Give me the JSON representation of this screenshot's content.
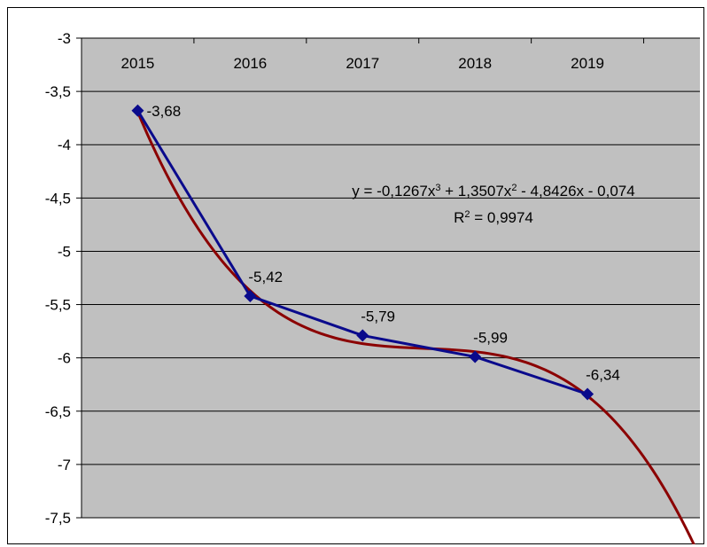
{
  "chart_data": {
    "type": "line",
    "categories": [
      "2015",
      "2016",
      "2017",
      "2018",
      "2019"
    ],
    "series": [
      {
        "values": [
          -3.68,
          -5.42,
          -5.79,
          -5.99,
          -6.34
        ],
        "color": "#0a0a8c",
        "marker": "diamond",
        "data_labels": [
          "-3,68",
          "-5,42",
          "-5,79",
          "-5,99",
          "-6,34"
        ]
      }
    ],
    "trendline": {
      "type": "polynomial-3",
      "coefficients": [
        -0.1267,
        1.3507,
        -4.8426,
        -0.074
      ],
      "color": "#8b0000",
      "equation_parts": [
        "y = -0,1267x",
        "3",
        " + 1,3507x",
        "2",
        " - 4,8426x - 0,074"
      ],
      "r2_parts": [
        "R",
        "2",
        " = 0,9974"
      ]
    },
    "y_ticks": [
      "-3",
      "-3,5",
      "-4",
      "-4,5",
      "-5",
      "-5,5",
      "-6",
      "-6,5",
      "-7",
      "-7,5"
    ],
    "ylim": [
      -7.5,
      -3
    ],
    "y_tick_values": [
      -3,
      -3.5,
      -4,
      -4.5,
      -5,
      -5.5,
      -6,
      -6.5,
      -7,
      -7.5
    ],
    "x_axis_position": "top",
    "grid": true,
    "plot_background": "#c0c0c0"
  }
}
